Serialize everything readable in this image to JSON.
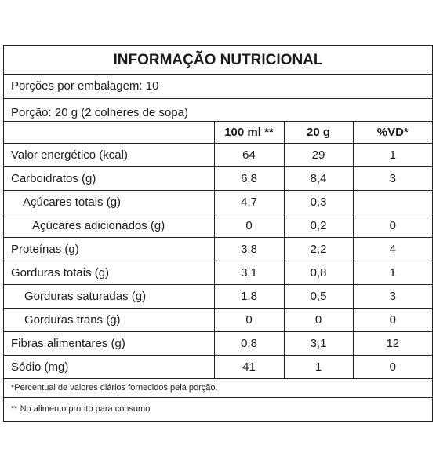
{
  "label": {
    "title": "INFORMAÇÃO NUTRICIONAL",
    "servings_per_package": "Porções por embalagem: 10",
    "portion": "Porção: 20 g (2 colheres de sopa)",
    "columns": [
      "",
      "100 ml **",
      "20 g",
      "%VD*"
    ],
    "rows": [
      {
        "name": "Valor energético (kcal)",
        "per100": "64",
        "portion": "29",
        "vd": "1"
      },
      {
        "name": "Carboidratos (g)",
        "per100": "6,8",
        "portion": "8,4",
        "vd": "3"
      },
      {
        "name": "Açúcares totais (g)",
        "per100": "4,7",
        "portion": "0,3",
        "vd": ""
      },
      {
        "name": "Açúcares adicionados (g)",
        "per100": "0",
        "portion": "0,2",
        "vd": "0"
      },
      {
        "name": "Proteínas (g)",
        "per100": "3,8",
        "portion": "2,2",
        "vd": "4"
      },
      {
        "name": "Gorduras totais (g)",
        "per100": "3,1",
        "portion": "0,8",
        "vd": "1"
      },
      {
        "name": "Gorduras saturadas (g)",
        "per100": "1,8",
        "portion": "0,5",
        "vd": "3"
      },
      {
        "name": "Gorduras trans (g)",
        "per100": "0",
        "portion": "0",
        "vd": "0"
      },
      {
        "name": "Fibras alimentares (g)",
        "per100": "0,8",
        "portion": "3,1",
        "vd": "12"
      },
      {
        "name": "Sódio (mg)",
        "per100": "41",
        "portion": "1",
        "vd": "0"
      }
    ],
    "footnote_vd": "*Percentual de valores diários fornecidos pela porção.",
    "footnote_ready": "** No alimento pronto para consumo"
  }
}
